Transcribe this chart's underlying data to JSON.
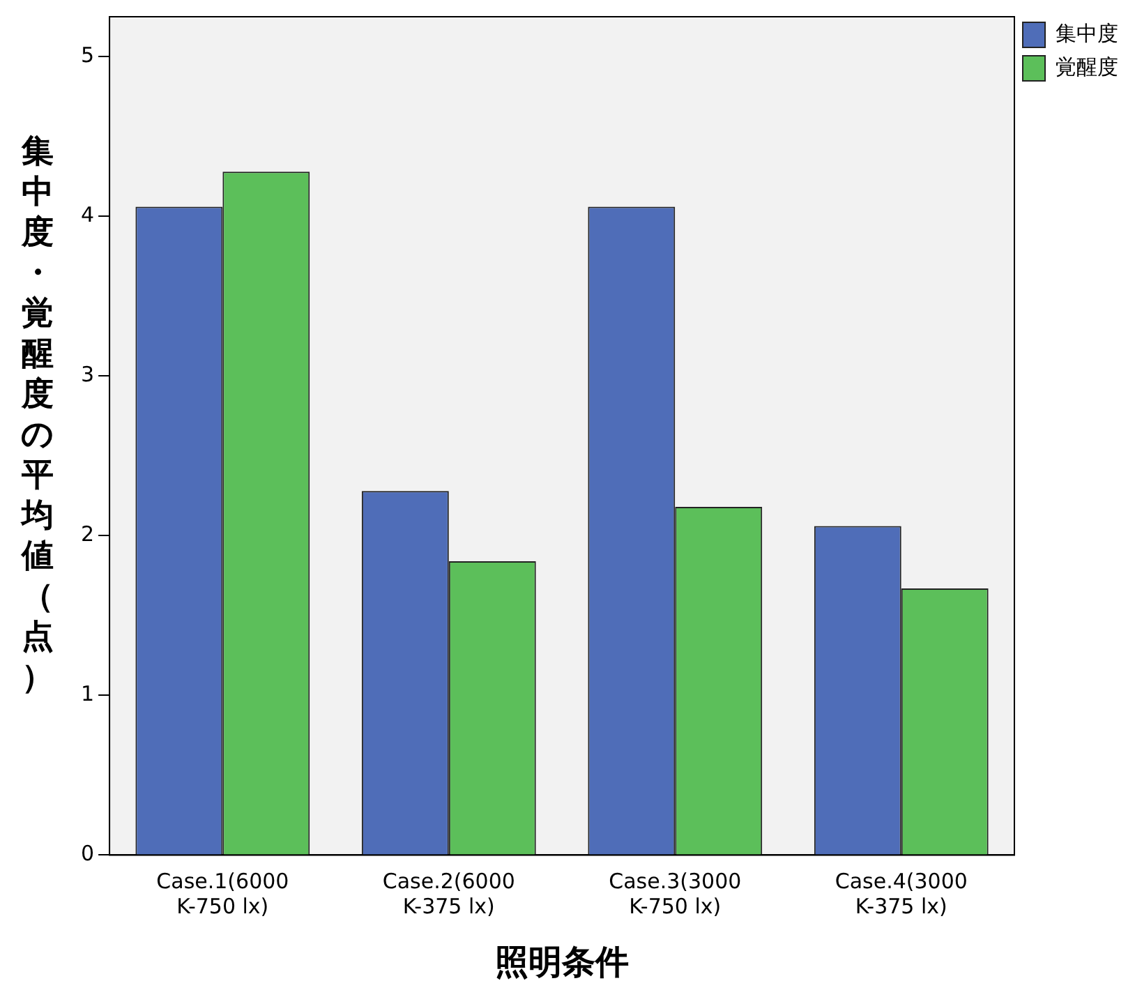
{
  "chart_data": {
    "type": "bar",
    "xlabel": "照明条件",
    "ylabel": "集中度・覚醒度の平均値（点）",
    "categories": [
      "Case.1(6000 K-750 lx)",
      "Case.2(6000 K-375 lx)",
      "Case.3(3000 K-750 lx)",
      "Case.4(3000 K-375 lx)"
    ],
    "series": [
      {
        "name": "集中度",
        "color": "#4f6db8",
        "values": [
          4.06,
          2.28,
          4.06,
          2.06
        ]
      },
      {
        "name": "覚醒度",
        "color": "#5cbf5a",
        "values": [
          4.28,
          1.84,
          2.18,
          1.67
        ]
      }
    ],
    "ylim": [
      0,
      5.25
    ],
    "yticks": [
      0,
      1,
      2,
      3,
      4,
      5
    ],
    "grid": false,
    "legend": "top right"
  }
}
